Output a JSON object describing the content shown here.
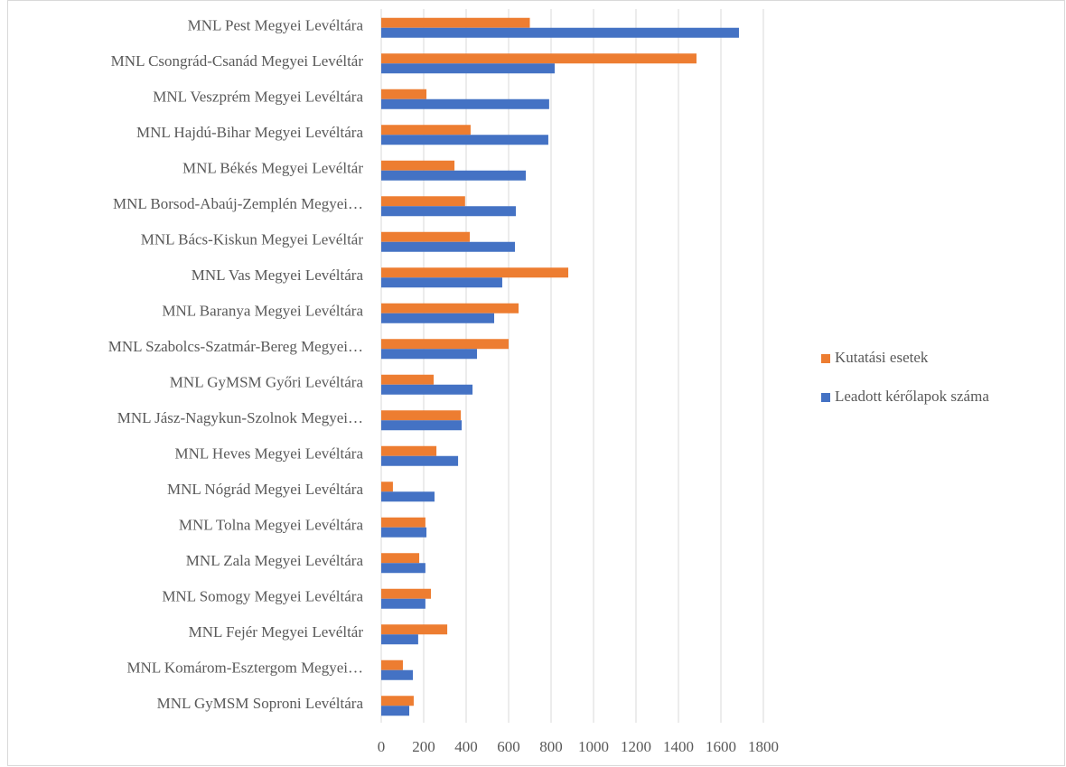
{
  "chart_data": {
    "type": "barh",
    "categories": [
      "MNL Pest Megyei Levéltára",
      "MNL Csongrád-Csanád Megyei Levéltár",
      "MNL Veszprém Megyei Levéltára",
      "MNL Hajdú-Bihar Megyei Levéltára",
      "MNL Békés Megyei Levéltár",
      "MNL Borsod-Abaúj-Zemplén Megyei…",
      "MNL Bács-Kiskun Megyei Levéltár",
      "MNL Vas Megyei Levéltára",
      "MNL Baranya Megyei Levéltára",
      "MNL Szabolcs-Szatmár-Bereg Megyei…",
      "MNL GyMSM Győri Levéltára",
      "MNL Jász-Nagykun-Szolnok Megyei…",
      "MNL Heves Megyei Levéltára",
      "MNL Nógrád Megyei Levéltára",
      "MNL Tolna Megyei Levéltára",
      "MNL Zala Megyei Levéltára",
      "MNL Somogy Megyei Levéltára",
      "MNL Fejér Megyei Levéltár",
      "MNL Komárom-Esztergom Megyei…",
      "MNL GyMSM Soproni Levéltára"
    ],
    "series": [
      {
        "name": "Kutatási esetek",
        "color": "#ed7d31",
        "values": [
          700,
          1485,
          213,
          421,
          345,
          395,
          417,
          881,
          647,
          600,
          247,
          375,
          260,
          55,
          208,
          179,
          234,
          311,
          102,
          153
        ]
      },
      {
        "name": "Leadott kérőlapok száma",
        "color": "#4472c4",
        "values": [
          1685,
          817,
          791,
          787,
          681,
          634,
          630,
          570,
          532,
          451,
          430,
          379,
          362,
          251,
          213,
          208,
          208,
          174,
          149,
          132
        ]
      }
    ],
    "xlim": [
      0,
      1800
    ],
    "xticks": [
      0,
      200,
      400,
      600,
      800,
      1000,
      1200,
      1400,
      1600,
      1800
    ],
    "grid": true,
    "legend": "right"
  }
}
